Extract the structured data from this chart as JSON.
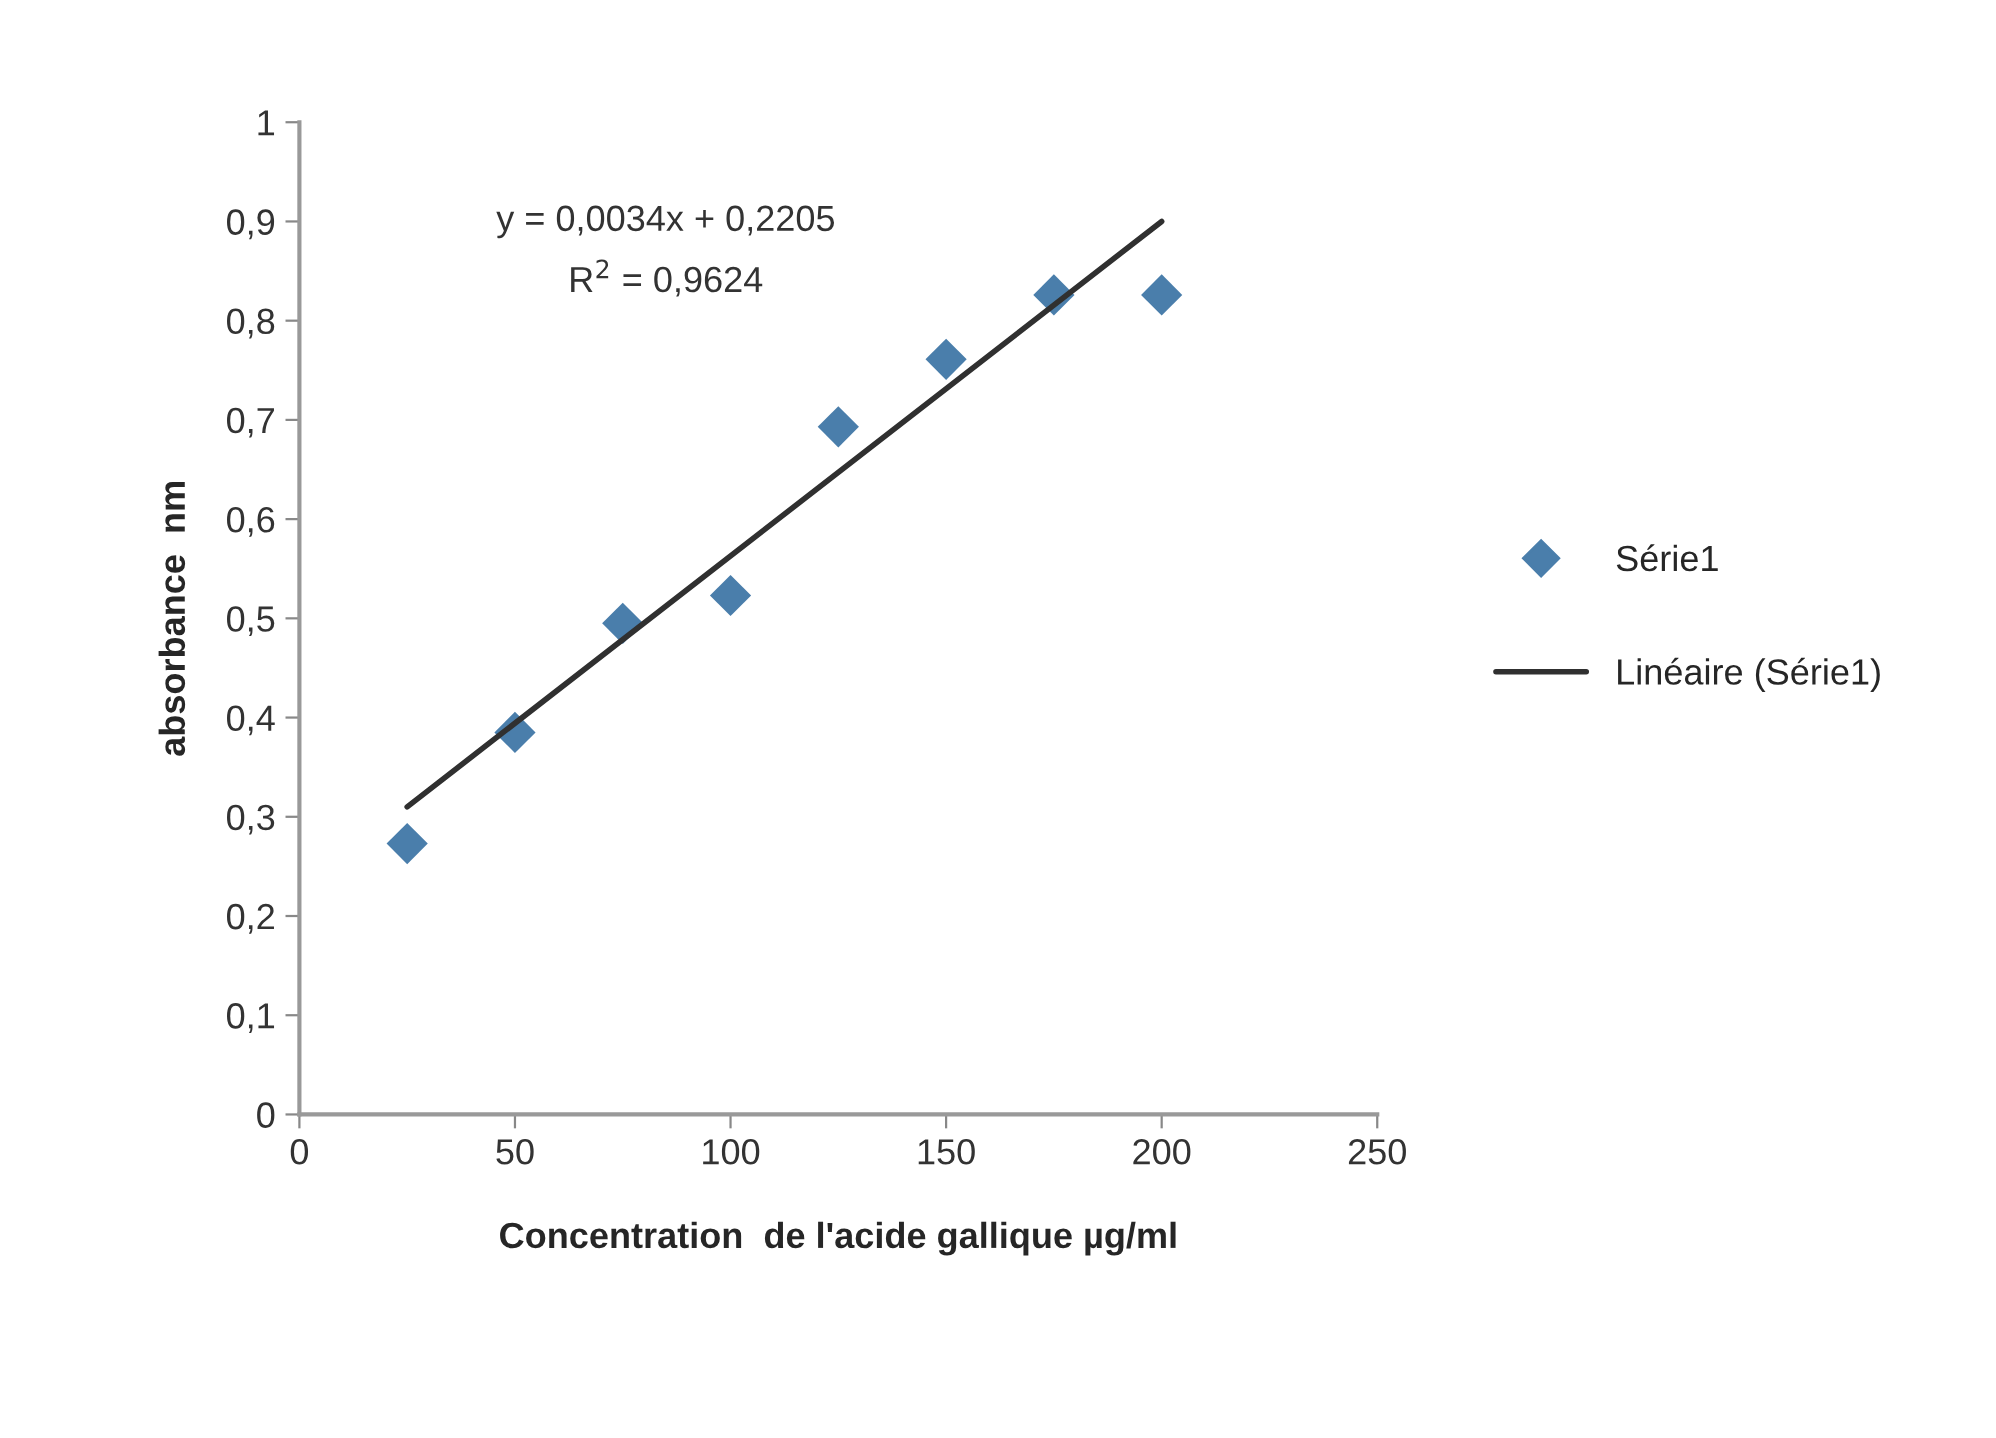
{
  "chart_data": {
    "type": "scatter",
    "xlabel": "Concentration  de l'acide gallique µg/ml",
    "ylabel": "absorbance  nm",
    "x": [
      25,
      50,
      75,
      100,
      125,
      150,
      175,
      200
    ],
    "series": [
      {
        "name": "Série1",
        "color": "#4a7eab",
        "marker": "diamond",
        "values": [
          0.273,
          0.385,
          0.495,
          0.523,
          0.693,
          0.761,
          0.826,
          0.826
        ]
      },
      {
        "name": "Linéaire (Série1)",
        "type": "line",
        "color": "#303030",
        "line_style": "solid",
        "marker": "none",
        "x": [
          25,
          200
        ],
        "values": [
          0.31,
          0.9
        ]
      }
    ],
    "annotations": [
      "y = 0,0034x + 0,2205",
      "R$^{2}$ = 0,9624"
    ],
    "xlim": [
      0,
      250
    ],
    "xticks": [
      0,
      50,
      100,
      150,
      200,
      250
    ],
    "ylim": [
      0,
      1
    ],
    "yticks": [
      0,
      {
        "value": 0.1,
        "label": "0,1"
      },
      {
        "value": 0.2,
        "label": "0,2"
      },
      {
        "value": 0.3,
        "label": "0,3"
      },
      {
        "value": 0.4,
        "label": "0,4"
      },
      {
        "value": 0.5,
        "label": "0,5"
      },
      {
        "value": 0.6,
        "label": "0,6"
      },
      {
        "value": 0.7,
        "label": "0,7"
      },
      {
        "value": 0.8,
        "label": "0,8"
      },
      {
        "value": 0.9,
        "label": "0,9"
      },
      1
    ],
    "grid": false,
    "legend": "right"
  }
}
